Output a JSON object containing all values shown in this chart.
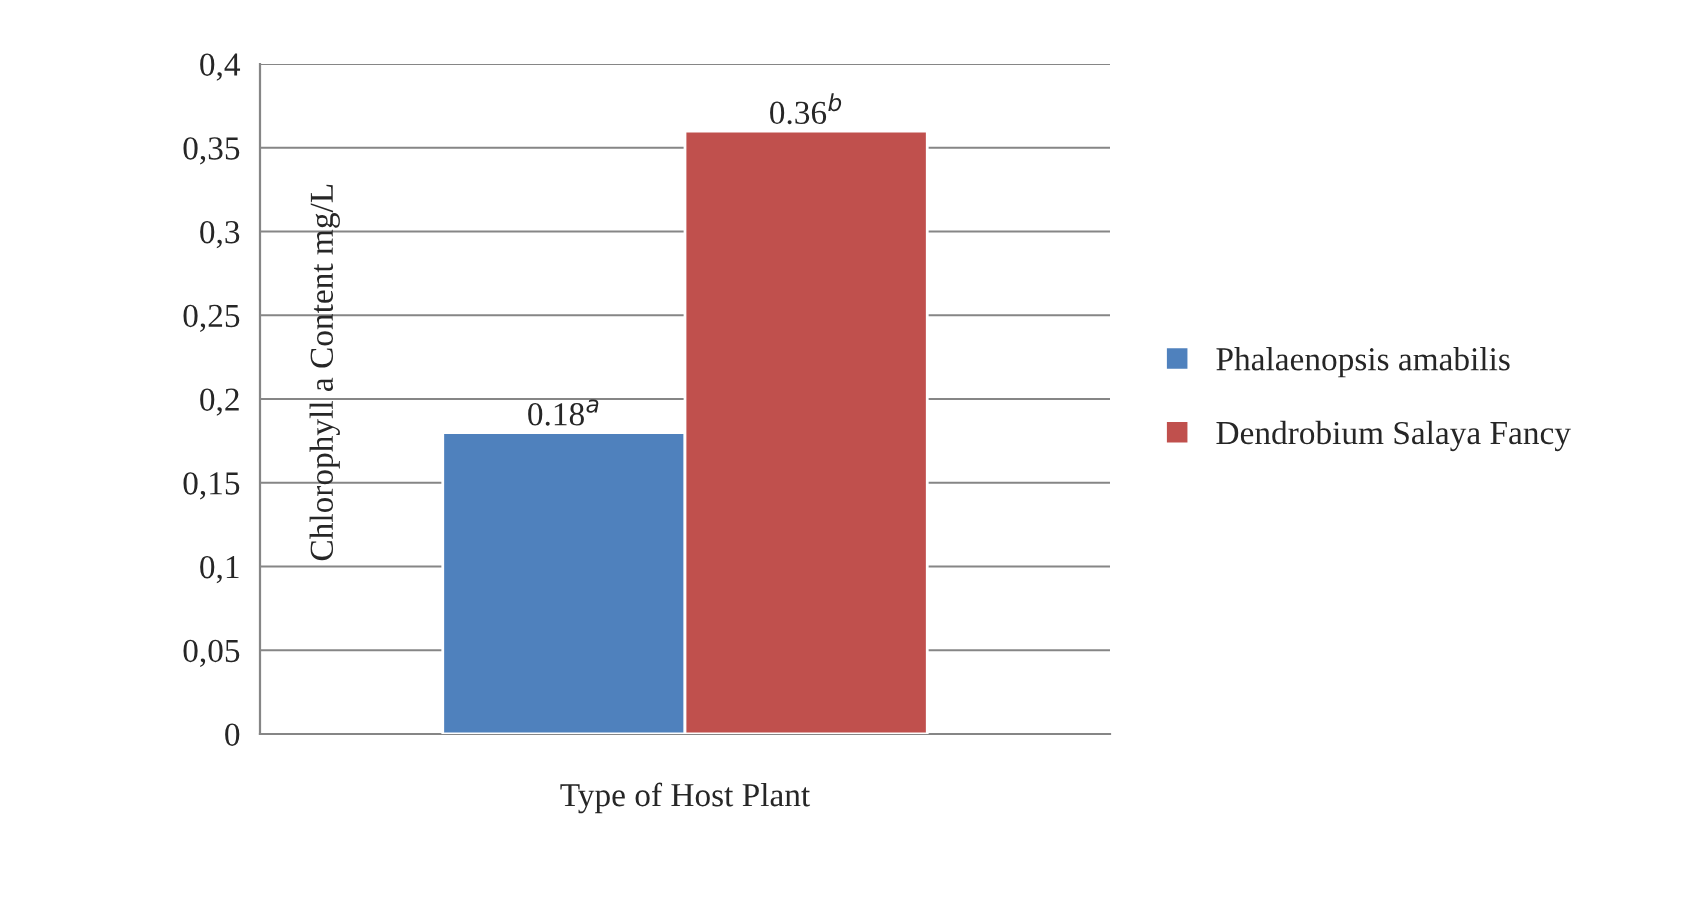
{
  "chart_data": {
    "type": "bar",
    "xlabel": "Type of Host Plant",
    "ylabel": "Chlorophyll a Content mg/L",
    "categories": [
      null
    ],
    "series": [
      {
        "name": "Phalaenopsis amabilis",
        "color": "#4f81bd",
        "values": [
          0.18
        ],
        "value_labels": [
          "0.18$^{a}$"
        ]
      },
      {
        "name": "Dendrobium Salaya Fancy",
        "color": "#c0504d",
        "values": [
          0.36
        ],
        "value_labels": [
          "0.36$^{b}$"
        ]
      }
    ],
    "ylim": [
      0,
      0.4
    ],
    "yticks": [
      0,
      {
        "value": 0.05,
        "label": "0,05"
      },
      {
        "value": 0.1,
        "label": "0,1"
      },
      {
        "value": 0.15,
        "label": "0,15"
      },
      {
        "value": 0.2,
        "label": "0,2"
      },
      {
        "value": 0.25,
        "label": "0,25"
      },
      {
        "value": 0.3,
        "label": "0,3"
      },
      {
        "value": 0.35,
        "label": "0,35"
      },
      {
        "value": 0.4,
        "label": "0,4"
      }
    ],
    "grid": "y",
    "legend": "right"
  }
}
